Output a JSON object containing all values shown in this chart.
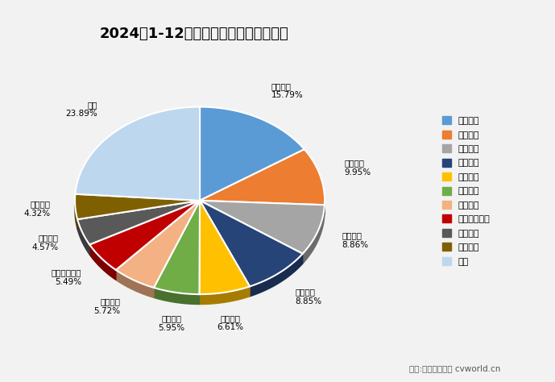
{
  "title": "2024年1-12月商用车市场前十企业份额",
  "labels": [
    "福田汽车",
    "东风公司",
    "重庆长安",
    "中国重汽",
    "一汽解放",
    "江淮汽车",
    "江铃汽车",
    "上汽通用五菱",
    "长城汽车",
    "陕汽集团",
    "其他"
  ],
  "values": [
    15.79,
    9.95,
    8.86,
    8.85,
    6.61,
    5.95,
    5.72,
    5.49,
    4.57,
    4.32,
    23.89
  ],
  "colors": [
    "#5B9BD5",
    "#ED7D31",
    "#A5A5A5",
    "#264478",
    "#FFC000",
    "#70AD47",
    "#F4B183",
    "#C00000",
    "#595959",
    "#7F6000",
    "#BDD7EE"
  ],
  "legend_colors": [
    "#5B9BD5",
    "#ED7D31",
    "#A5A5A5",
    "#264478",
    "#FFC000",
    "#70AD47",
    "#F4B183",
    "#C00000",
    "#595959",
    "#7F6000",
    "#BDD7EE"
  ],
  "startangle": 90,
  "footer": "制图:第一商用车网 cvworld.cn",
  "background_color": "#f2f2f2",
  "font_name": "SimHei"
}
